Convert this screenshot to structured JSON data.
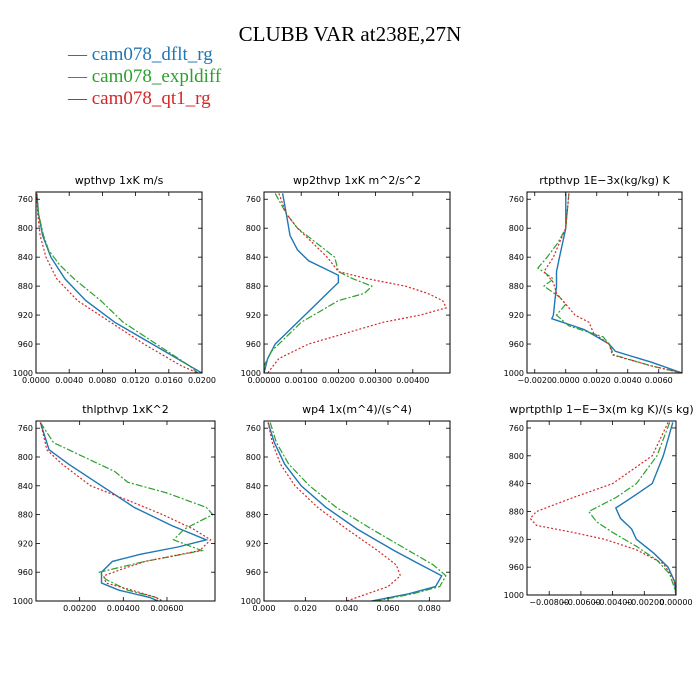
{
  "title": "CLUBB VAR at238E,27N",
  "legend": [
    {
      "label": "cam078_dflt_rg",
      "color": "#1f77b4"
    },
    {
      "label": "cam078_expldiff",
      "color": "#2ca02c"
    },
    {
      "label": "cam078_qt1_rg",
      "color": "#d62728"
    }
  ],
  "chart_data": [
    {
      "type": "line",
      "title": "wpthvp  1xK m/s",
      "xlim": [
        0.0,
        0.02
      ],
      "ylim": [
        1000,
        750
      ],
      "xticks": [
        "0.0000",
        "0.0040",
        "0.0080",
        "0.0120",
        "0.0160",
        "0.0200"
      ],
      "xtick_values": [
        0.0,
        0.004,
        0.008,
        0.012,
        0.016,
        0.02
      ],
      "yticks": [
        "760",
        "800",
        "840",
        "880",
        "920",
        "960",
        "1000"
      ],
      "ytick_values": [
        760,
        800,
        840,
        880,
        920,
        960,
        1000
      ],
      "series": [
        {
          "pressure": [
            752,
            780,
            810,
            840,
            870,
            900,
            930,
            960,
            990,
            1000
          ],
          "values": [
            0.0001,
            0.0003,
            0.0008,
            0.0018,
            0.0035,
            0.006,
            0.0095,
            0.014,
            0.0185,
            0.02
          ]
        },
        {
          "pressure": [
            752,
            780,
            810,
            830,
            850,
            870,
            900,
            930,
            960,
            990,
            1000
          ],
          "values": [
            0.0001,
            0.0003,
            0.0009,
            0.0015,
            0.0028,
            0.0046,
            0.0078,
            0.0105,
            0.0145,
            0.0185,
            0.0195
          ]
        },
        {
          "pressure": [
            752,
            780,
            810,
            840,
            870,
            900,
            930,
            960,
            990,
            1000
          ],
          "values": [
            0.0001,
            0.0002,
            0.0005,
            0.0012,
            0.0025,
            0.005,
            0.009,
            0.013,
            0.0175,
            0.0195
          ]
        }
      ]
    },
    {
      "type": "line",
      "title": "wp2thvp  1xK m^2/s^2",
      "xlim": [
        0.0,
        0.005
      ],
      "ylim": [
        1000,
        750
      ],
      "xticks": [
        "0.00000",
        "0.00100",
        "0.00200",
        "0.00300",
        "0.00400"
      ],
      "xtick_values": [
        0.0,
        0.001,
        0.002,
        0.003,
        0.004
      ],
      "yticks": [
        "760",
        "800",
        "840",
        "880",
        "920",
        "960",
        "1000"
      ],
      "ytick_values": [
        760,
        800,
        840,
        880,
        920,
        960,
        1000
      ],
      "series": [
        {
          "pressure": [
            752,
            780,
            810,
            830,
            845,
            855,
            865,
            875,
            890,
            905,
            920,
            940,
            960,
            980,
            1000
          ],
          "values": [
            0.0005,
            0.0006,
            0.0007,
            0.0009,
            0.0012,
            0.0016,
            0.002,
            0.002,
            0.0017,
            0.0014,
            0.0011,
            0.0007,
            0.0003,
            0.0001,
            0.0
          ]
        },
        {
          "pressure": [
            752,
            780,
            800,
            820,
            840,
            860,
            870,
            880,
            890,
            900,
            915,
            930,
            950,
            970,
            990,
            1000
          ],
          "values": [
            0.0003,
            0.0006,
            0.0009,
            0.0014,
            0.0019,
            0.002,
            0.0024,
            0.0029,
            0.0027,
            0.002,
            0.0015,
            0.001,
            0.0006,
            0.0002,
            0.0,
            0.0
          ]
        },
        {
          "pressure": [
            752,
            780,
            800,
            820,
            840,
            860,
            870,
            880,
            890,
            900,
            910,
            920,
            930,
            945,
            960,
            980,
            1000
          ],
          "values": [
            0.0004,
            0.0006,
            0.0009,
            0.0013,
            0.0017,
            0.002,
            0.0028,
            0.0038,
            0.0044,
            0.0048,
            0.0049,
            0.0042,
            0.0032,
            0.0022,
            0.0012,
            0.0004,
            0.0001
          ]
        }
      ]
    },
    {
      "type": "line",
      "title": "rtpthvp  1E−3x(kg/kg) K",
      "xlim": [
        -0.0025,
        0.0075
      ],
      "ylim": [
        1000,
        750
      ],
      "xticks": [
        "−0.0020",
        "0.0000",
        "0.0020",
        "0.0040",
        "0.0060"
      ],
      "xtick_values": [
        -0.002,
        0.0,
        0.002,
        0.004,
        0.006
      ],
      "yticks": [
        "760",
        "800",
        "840",
        "880",
        "920",
        "960",
        "1000"
      ],
      "ytick_values": [
        760,
        800,
        840,
        880,
        920,
        960,
        1000
      ],
      "series": [
        {
          "pressure": [
            752,
            800,
            840,
            860,
            880,
            900,
            920,
            925,
            940,
            960,
            970,
            985,
            1000
          ],
          "values": [
            0.0,
            0.0,
            -0.0004,
            -0.0006,
            -0.0006,
            -0.0007,
            -0.0008,
            -0.0009,
            0.0012,
            0.0028,
            0.0032,
            0.0055,
            0.0075
          ]
        },
        {
          "pressure": [
            752,
            800,
            820,
            840,
            855,
            870,
            880,
            895,
            905,
            920,
            935,
            950,
            960,
            975,
            990,
            1000
          ],
          "values": [
            0.0002,
            0.0,
            -0.0005,
            -0.0012,
            -0.0018,
            -0.0008,
            -0.0014,
            -0.0004,
            0.0,
            -0.0006,
            0.0002,
            0.0024,
            0.0028,
            0.0031,
            0.0055,
            0.0075
          ]
        },
        {
          "pressure": [
            752,
            800,
            820,
            840,
            860,
            875,
            890,
            905,
            920,
            930,
            945,
            960,
            975,
            990,
            1000
          ],
          "values": [
            0.0002,
            0.0,
            -0.0004,
            -0.0008,
            -0.0014,
            -0.0008,
            -0.0006,
            0.0,
            0.0006,
            0.0015,
            0.0018,
            0.0028,
            0.003,
            0.0055,
            0.0075
          ]
        }
      ]
    },
    {
      "type": "line",
      "title": "thlpthvp  1xK^2",
      "xlim": [
        0.0,
        0.0082
      ],
      "ylim": [
        1000,
        750
      ],
      "xticks": [
        "0.00200",
        "0.00400",
        "0.00600"
      ],
      "xtick_values": [
        0.002,
        0.004,
        0.006
      ],
      "yticks": [
        "760",
        "800",
        "840",
        "880",
        "920",
        "960",
        "1000"
      ],
      "ytick_values": [
        760,
        800,
        840,
        880,
        920,
        960,
        1000
      ],
      "series": [
        {
          "pressure": [
            752,
            790,
            810,
            840,
            870,
            895,
            915,
            925,
            935,
            945,
            960,
            965,
            975,
            985,
            995,
            1000
          ],
          "values": [
            0.0002,
            0.0006,
            0.0015,
            0.003,
            0.0045,
            0.0062,
            0.0078,
            0.0065,
            0.0048,
            0.0035,
            0.003,
            0.003,
            0.003,
            0.0038,
            0.0052,
            0.0056
          ]
        },
        {
          "pressure": [
            752,
            780,
            800,
            820,
            835,
            850,
            870,
            880,
            900,
            915,
            930,
            945,
            960,
            970,
            985,
            995,
            1000
          ],
          "values": [
            0.0002,
            0.0008,
            0.0022,
            0.0036,
            0.0042,
            0.006,
            0.0078,
            0.0081,
            0.0068,
            0.0063,
            0.0076,
            0.005,
            0.0029,
            0.0032,
            0.0042,
            0.0055,
            0.0058
          ]
        },
        {
          "pressure": [
            752,
            790,
            810,
            840,
            860,
            880,
            900,
            915,
            930,
            945,
            955,
            965,
            975,
            985,
            995,
            1000
          ],
          "values": [
            0.0002,
            0.0005,
            0.0012,
            0.0025,
            0.0042,
            0.0058,
            0.0072,
            0.008,
            0.0075,
            0.005,
            0.004,
            0.0031,
            0.0032,
            0.0044,
            0.0055,
            0.0057
          ]
        }
      ]
    },
    {
      "type": "line",
      "title": "wp4  1x(m^4)/(s^4)",
      "xlim": [
        0.0,
        0.09
      ],
      "ylim": [
        1000,
        750
      ],
      "xticks": [
        "0.000",
        "0.020",
        "0.040",
        "0.060",
        "0.080"
      ],
      "xtick_values": [
        0.0,
        0.02,
        0.04,
        0.06,
        0.08
      ],
      "yticks": [
        "760",
        "800",
        "840",
        "880",
        "920",
        "960",
        "1000"
      ],
      "ytick_values": [
        760,
        800,
        840,
        880,
        920,
        960,
        1000
      ],
      "series": [
        {
          "pressure": [
            752,
            780,
            810,
            840,
            870,
            900,
            930,
            950,
            965,
            980,
            990,
            1000
          ],
          "values": [
            0.002,
            0.005,
            0.01,
            0.018,
            0.03,
            0.045,
            0.063,
            0.076,
            0.086,
            0.083,
            0.07,
            0.052
          ]
        },
        {
          "pressure": [
            752,
            780,
            810,
            840,
            870,
            900,
            930,
            950,
            965,
            980,
            990,
            1000
          ],
          "values": [
            0.003,
            0.006,
            0.012,
            0.022,
            0.035,
            0.052,
            0.07,
            0.082,
            0.088,
            0.085,
            0.072,
            0.054
          ]
        },
        {
          "pressure": [
            752,
            780,
            810,
            840,
            870,
            900,
            930,
            950,
            965,
            980,
            990,
            1000
          ],
          "values": [
            0.002,
            0.004,
            0.008,
            0.015,
            0.026,
            0.04,
            0.055,
            0.064,
            0.066,
            0.06,
            0.05,
            0.04
          ]
        }
      ]
    },
    {
      "type": "line",
      "title": "wprtpthlp  1−E−3x(m kg K)/(s kg)",
      "xlim": [
        -0.0094,
        0.0
      ],
      "ylim": [
        1000,
        750
      ],
      "xticks": [
        "−0.00800",
        "−0.00600",
        "−0.00400",
        "−0.00200",
        "0.00000"
      ],
      "xtick_values": [
        -0.008,
        -0.006,
        -0.004,
        -0.002,
        0.0
      ],
      "yticks": [
        "760",
        "800",
        "840",
        "880",
        "920",
        "960",
        "1000"
      ],
      "ytick_values": [
        760,
        800,
        840,
        880,
        920,
        960,
        1000
      ],
      "series": [
        {
          "pressure": [
            752,
            800,
            840,
            860,
            875,
            890,
            905,
            920,
            940,
            960,
            980,
            1000
          ],
          "values": [
            -0.0002,
            -0.0008,
            -0.0015,
            -0.0028,
            -0.0038,
            -0.0035,
            -0.0028,
            -0.0025,
            -0.0014,
            -0.0005,
            -0.0001,
            0.0
          ]
        },
        {
          "pressure": [
            752,
            800,
            840,
            860,
            880,
            895,
            910,
            930,
            950,
            970,
            990,
            1000
          ],
          "values": [
            -0.0004,
            -0.0012,
            -0.0025,
            -0.0038,
            -0.0055,
            -0.005,
            -0.004,
            -0.0025,
            -0.0012,
            -0.0004,
            -0.0001,
            0.0
          ]
        },
        {
          "pressure": [
            752,
            800,
            840,
            860,
            880,
            890,
            900,
            910,
            920,
            935,
            955,
            975,
            990,
            1000
          ],
          "values": [
            -0.0005,
            -0.0015,
            -0.004,
            -0.0065,
            -0.0088,
            -0.0092,
            -0.0088,
            -0.0065,
            -0.0045,
            -0.0025,
            -0.0008,
            -0.0002,
            0.0,
            0.0
          ]
        }
      ]
    }
  ]
}
